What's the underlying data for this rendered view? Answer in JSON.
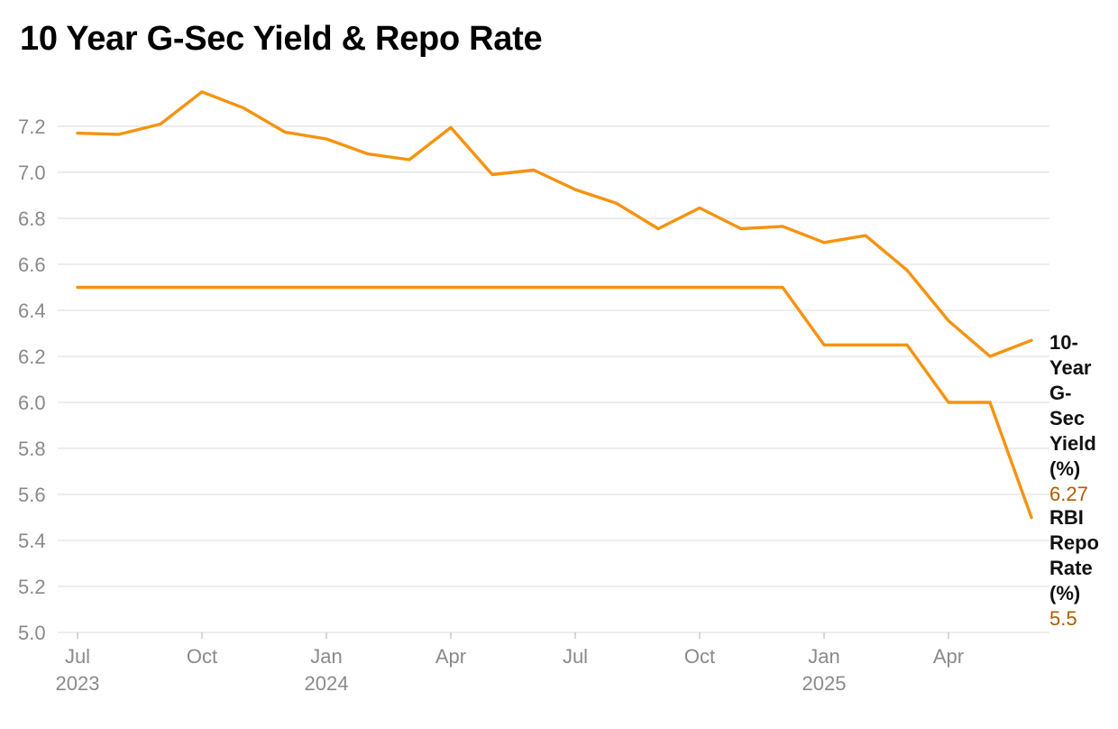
{
  "title": "10 Year G-Sec Yield & Repo Rate",
  "colors": {
    "series": "#f5930f",
    "grid": "#e2e2e2",
    "tick": "#8a8a8a",
    "value_label": "#b35a00"
  },
  "chart_data": {
    "type": "line",
    "title": "10 Year G-Sec Yield & Repo Rate",
    "x_start": "2023-07",
    "x": [
      "2023-07",
      "2023-08",
      "2023-09",
      "2023-10",
      "2023-11",
      "2023-12",
      "2024-01",
      "2024-02",
      "2024-03",
      "2024-04",
      "2024-05",
      "2024-06",
      "2024-07",
      "2024-08",
      "2024-09",
      "2024-10",
      "2024-11",
      "2024-12",
      "2025-01",
      "2025-02",
      "2025-03",
      "2025-04",
      "2025-05",
      "2025-06"
    ],
    "series": [
      {
        "name": "10-Year G-Sec Yield (%)",
        "end_value": "6.27",
        "values": [
          7.17,
          7.165,
          7.21,
          7.35,
          7.28,
          7.175,
          7.145,
          7.08,
          7.055,
          7.195,
          6.99,
          7.01,
          6.925,
          6.865,
          6.755,
          6.845,
          6.755,
          6.765,
          6.695,
          6.725,
          6.575,
          6.355,
          6.2,
          6.27
        ]
      },
      {
        "name": "RBI Repo Rate (%)",
        "end_value": "5.5",
        "values": [
          6.5,
          6.5,
          6.5,
          6.5,
          6.5,
          6.5,
          6.5,
          6.5,
          6.5,
          6.5,
          6.5,
          6.5,
          6.5,
          6.5,
          6.5,
          6.5,
          6.5,
          6.5,
          6.25,
          6.25,
          6.25,
          6.0,
          6.0,
          5.5
        ]
      }
    ],
    "x_ticks": [
      {
        "index": 0,
        "label": "Jul",
        "year": "2023"
      },
      {
        "index": 3,
        "label": "Oct",
        "year": ""
      },
      {
        "index": 6,
        "label": "Jan",
        "year": "2024"
      },
      {
        "index": 9,
        "label": "Apr",
        "year": ""
      },
      {
        "index": 12,
        "label": "Jul",
        "year": ""
      },
      {
        "index": 15,
        "label": "Oct",
        "year": ""
      },
      {
        "index": 18,
        "label": "Jan",
        "year": "2025"
      },
      {
        "index": 21,
        "label": "Apr",
        "year": ""
      }
    ],
    "y_ticks": [
      "5.0",
      "5.2",
      "5.4",
      "5.6",
      "5.8",
      "6.0",
      "6.2",
      "6.4",
      "6.6",
      "6.8",
      "7.0",
      "7.2"
    ],
    "ylim": [
      5.0,
      7.4
    ],
    "grid": true,
    "legend": "direct labels at line ends (right)"
  }
}
